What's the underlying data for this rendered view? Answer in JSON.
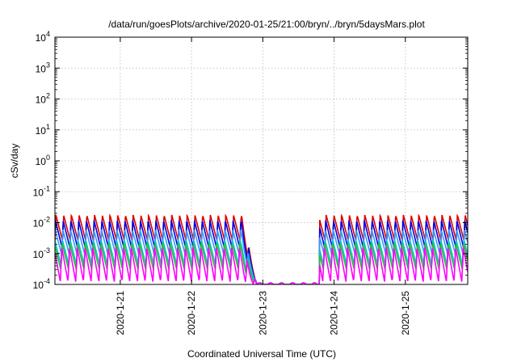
{
  "chart_data": {
    "type": "line",
    "title": "/data/run/goesPlots/archive/2020-01-25/21:00/bryn/../bryn/5daysMars.plot",
    "xlabel": "Coordinated Universal Time (UTC)",
    "ylabel": "cSv/day",
    "x_range": [
      "2020-01-20T02:00",
      "2020-01-25T21:00"
    ],
    "ylim": [
      0.0001,
      10000
    ],
    "y_scale": "log",
    "grid": true,
    "x_ticks": [
      "2020-1-21",
      "2020-1-22",
      "2020-1-23",
      "2020-1-24",
      "2020-1-25"
    ],
    "y_ticks": [
      {
        "base": "10",
        "exp": "-4"
      },
      {
        "base": "10",
        "exp": "-3"
      },
      {
        "base": "10",
        "exp": "-2"
      },
      {
        "base": "10",
        "exp": "-1"
      },
      {
        "base": "10",
        "exp": "0"
      },
      {
        "base": "10",
        "exp": "1"
      },
      {
        "base": "10",
        "exp": "2"
      },
      {
        "base": "10",
        "exp": "3"
      },
      {
        "base": "10",
        "exp": "4"
      }
    ],
    "pattern": {
      "sawtooth_period_hours": 2.6,
      "gap_start": "2020-01-22T22:00",
      "gap_end": "2020-01-23T19:00",
      "gap_floor": 0.0001
    },
    "series": [
      {
        "color": "#e00000",
        "peak": 0.018,
        "trough": 0.0025,
        "ramp_frac": 0.12
      },
      {
        "color": "#0000e0",
        "peak": 0.012,
        "trough": 0.0015,
        "ramp_frac": 0.12
      },
      {
        "color": "#3399ff",
        "peak": 0.006,
        "trough": 0.0009,
        "ramp_frac": 0.14
      },
      {
        "color": "#00c8c8",
        "peak": 0.0028,
        "trough": 0.0004,
        "ramp_frac": 0.15
      },
      {
        "color": "#33bb33",
        "peak": 0.0022,
        "trough": 0.0003,
        "ramp_frac": 0.15
      },
      {
        "color": "#ff00ff",
        "peak": 0.0016,
        "trough": 0.00012,
        "ramp_frac": 0.18
      }
    ]
  }
}
